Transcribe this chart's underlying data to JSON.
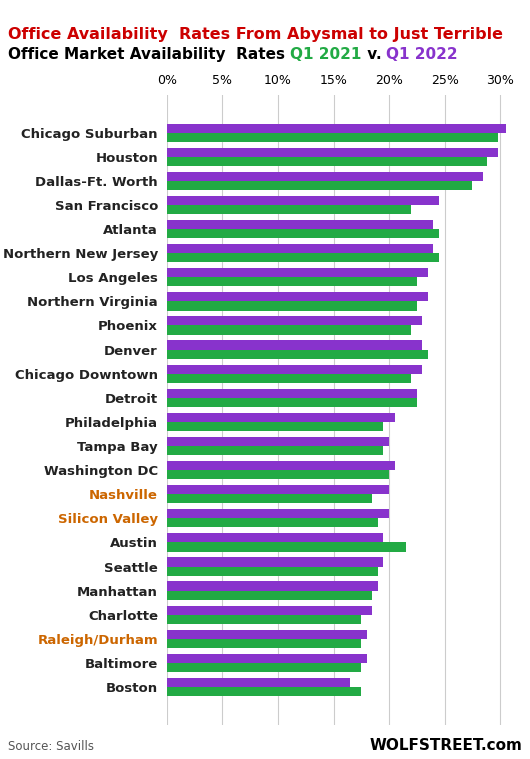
{
  "title1": "Office Availability  Rates From Abysmal to Just Terrible",
  "title1_color": "#cc0000",
  "title2_black1": "Office Market Availability  Rates ",
  "title2_green": "Q1 2021",
  "title2_mid": " v. ",
  "title2_purple": "Q1 2022",
  "categories": [
    "Chicago Suburban",
    "Houston",
    "Dallas-Ft. Worth",
    "San Francisco",
    "Atlanta",
    "Northern New Jersey",
    "Los Angeles",
    "Northern Virginia",
    "Phoenix",
    "Denver",
    "Chicago Downtown",
    "Detroit",
    "Philadelphia",
    "Tampa Bay",
    "Washington DC",
    "Nashville",
    "Silicon Valley",
    "Austin",
    "Seattle",
    "Manhattan",
    "Charlotte",
    "Raleigh/Durham",
    "Baltimore",
    "Boston"
  ],
  "orange_labels": [
    "Nashville",
    "Silicon Valley",
    "Raleigh/Durham"
  ],
  "q1_2021": [
    29.8,
    28.8,
    27.5,
    22.0,
    24.5,
    24.5,
    22.5,
    22.5,
    22.0,
    23.5,
    22.0,
    22.5,
    19.5,
    19.5,
    20.0,
    18.5,
    19.0,
    21.5,
    19.0,
    18.5,
    17.5,
    17.5,
    17.5,
    17.5
  ],
  "q1_2022": [
    30.5,
    29.8,
    28.5,
    24.5,
    24.0,
    24.0,
    23.5,
    23.5,
    23.0,
    23.0,
    23.0,
    22.5,
    20.5,
    20.0,
    20.5,
    20.0,
    20.0,
    19.5,
    19.5,
    19.0,
    18.5,
    18.0,
    18.0,
    16.5
  ],
  "color_2021": "#22aa44",
  "color_2022": "#8833cc",
  "xlim": [
    0,
    31.5
  ],
  "xticks": [
    0,
    5,
    10,
    15,
    20,
    25,
    30
  ],
  "xticklabels": [
    "0%",
    "5%",
    "10%",
    "15%",
    "20%",
    "25%",
    "30%"
  ],
  "source": "Source: Savills",
  "watermark": "WOLFSTREET.com",
  "bg_color": "#ffffff",
  "bar_height": 0.38,
  "grid_color": "#cccccc",
  "label_fontsize": 9.5,
  "title1_fontsize": 11.5,
  "title2_fontsize": 11.0
}
